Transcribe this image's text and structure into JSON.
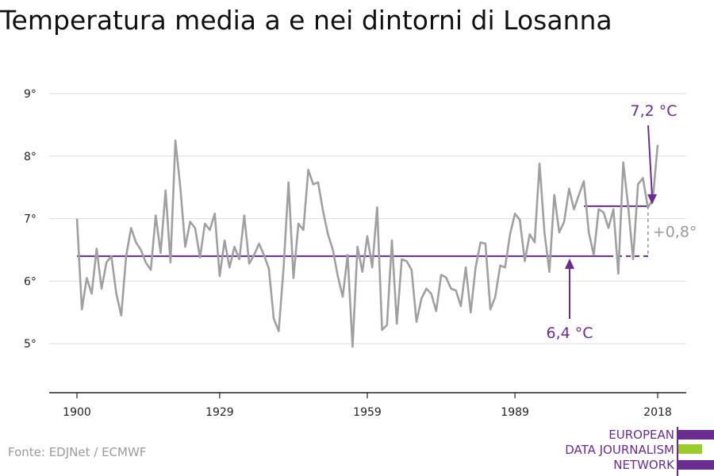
{
  "title": "Temperatura media a e nei dintorni di Losanna",
  "source": "Fonte: EDJNet / ECMWF",
  "logo": {
    "lines": [
      "EUROPEAN",
      "DATA JOURNALISM",
      "NETWORK"
    ],
    "colors": {
      "purple": "#6a2c8e",
      "green": "#9ccc2c"
    }
  },
  "colors": {
    "series": "#a0a0a0",
    "reference": "#6a2c8e",
    "grid": "#dddddd",
    "axis": "#222222"
  },
  "chart_data": {
    "type": "line",
    "title": "Temperatura media a e nei dintorni di Losanna",
    "xlabel": "",
    "ylabel": "",
    "xlim": [
      1900,
      2018
    ],
    "ylim": [
      4.2,
      9
    ],
    "yticks": [
      5,
      6,
      7,
      8,
      9
    ],
    "ytick_labels": [
      "5°",
      "6°",
      "7°",
      "8°",
      "9°"
    ],
    "xticks": [
      1900,
      1929,
      1959,
      1989,
      2018
    ],
    "xtick_labels": [
      "1900",
      "1929",
      "1959",
      "1989",
      "2018"
    ],
    "grid": true,
    "series": [
      {
        "x": [
          1900,
          1901,
          1902,
          1903,
          1904,
          1905,
          1906,
          1907,
          1908,
          1909,
          1910,
          1911,
          1912,
          1913,
          1914,
          1915,
          1916,
          1917,
          1918,
          1919,
          1920,
          1921,
          1922,
          1923,
          1924,
          1925,
          1926,
          1927,
          1928,
          1929,
          1930,
          1931,
          1932,
          1933,
          1934,
          1935,
          1936,
          1937,
          1938,
          1939,
          1940,
          1941,
          1942,
          1943,
          1944,
          1945,
          1946,
          1947,
          1948,
          1949,
          1950,
          1951,
          1952,
          1953,
          1954,
          1955,
          1956,
          1957,
          1958,
          1959,
          1960,
          1961,
          1962,
          1963,
          1964,
          1965,
          1966,
          1967,
          1968,
          1969,
          1970,
          1971,
          1972,
          1973,
          1974,
          1975,
          1976,
          1977,
          1978,
          1979,
          1980,
          1981,
          1982,
          1983,
          1984,
          1985,
          1986,
          1987,
          1988,
          1989,
          1990,
          1991,
          1992,
          1993,
          1994,
          1995,
          1996,
          1997,
          1998,
          1999,
          2000,
          2001,
          2002,
          2003,
          2004,
          2005,
          2006,
          2007,
          2008,
          2009,
          2010,
          2011,
          2012,
          2013,
          2014,
          2015,
          2016,
          2017,
          2018
        ],
        "values": [
          7.0,
          5.55,
          6.05,
          5.8,
          6.52,
          5.88,
          6.3,
          6.4,
          5.8,
          5.45,
          6.4,
          6.85,
          6.62,
          6.5,
          6.3,
          6.18,
          7.05,
          6.45,
          7.45,
          6.3,
          8.25,
          7.5,
          6.55,
          6.95,
          6.85,
          6.38,
          6.92,
          6.82,
          7.08,
          6.08,
          6.65,
          6.22,
          6.55,
          6.35,
          7.05,
          6.28,
          6.42,
          6.6,
          6.42,
          6.2,
          5.4,
          5.2,
          6.22,
          7.58,
          6.05,
          6.92,
          6.82,
          7.78,
          7.55,
          7.58,
          7.12,
          6.75,
          6.5,
          6.08,
          5.75,
          6.42,
          4.95,
          6.55,
          6.15,
          6.72,
          6.22,
          7.18,
          5.22,
          5.3,
          6.65,
          5.32,
          6.35,
          6.32,
          6.18,
          5.35,
          5.72,
          5.88,
          5.8,
          5.52,
          6.1,
          6.06,
          5.88,
          5.85,
          5.6,
          6.22,
          5.5,
          6.22,
          6.62,
          6.6,
          5.55,
          5.75,
          6.25,
          6.22,
          6.75,
          7.08,
          6.98,
          6.32,
          6.75,
          6.62,
          7.88,
          6.78,
          6.15,
          7.38,
          6.78,
          6.95,
          7.48,
          7.15,
          7.38,
          7.6,
          6.78,
          6.42,
          7.15,
          7.1,
          6.85,
          7.15,
          6.12,
          7.9,
          7.2,
          6.35,
          7.55,
          7.65,
          7.18,
          7.3,
          8.18
        ]
      }
    ],
    "reference_lines": [
      {
        "label": "6,4 °C",
        "value": 6.4,
        "from": 1900,
        "to": 2008,
        "dashed_from": 2008,
        "dashed_to": 2017
      },
      {
        "label": "7,2 °C",
        "value": 7.2,
        "from": 2003,
        "to": 2017
      }
    ],
    "difference_label": "+0,8°"
  }
}
